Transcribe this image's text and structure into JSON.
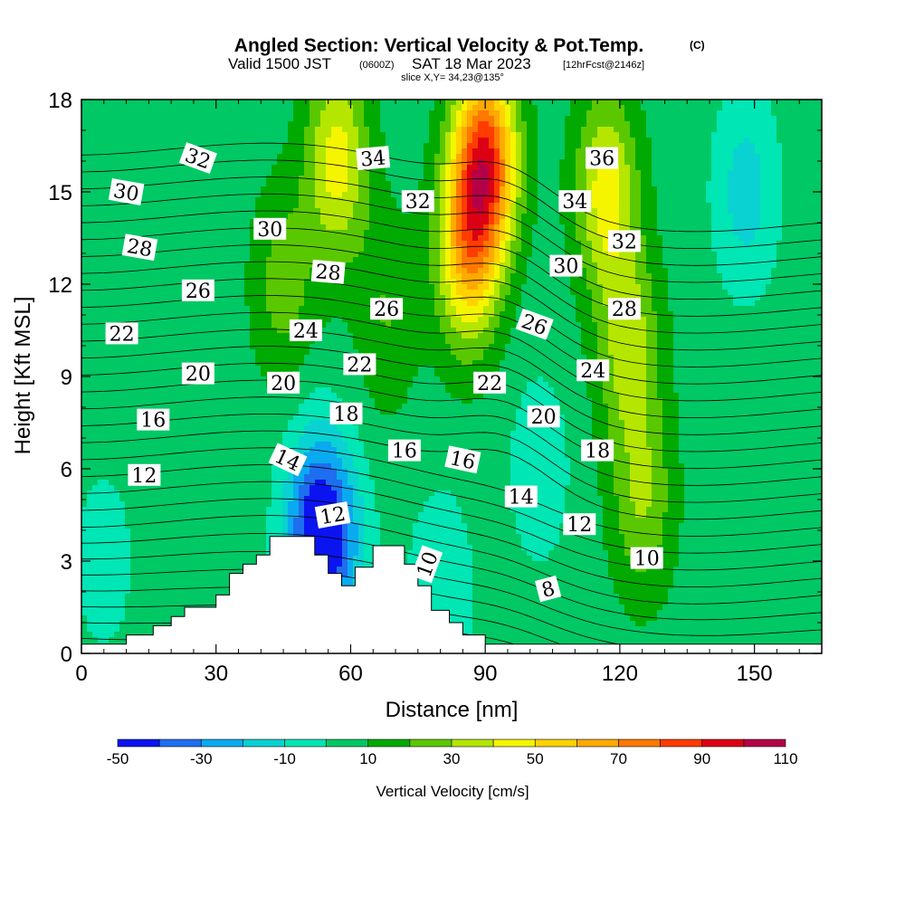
{
  "title": {
    "main": "Angled Section: Vertical Velocity & Pot.Temp.",
    "unit_tag": "(C)",
    "valid_prefix": "Valid 1500 JST",
    "valid_zulu": "(0600Z)",
    "valid_date": "SAT 18 Mar 2023",
    "forecast": "[12hrFcst@2146z]",
    "slice": "slice X,Y= 34,23@135°"
  },
  "chart_data": {
    "type": "heatmap",
    "xlabel": "Distance [nm]",
    "ylabel": "Height [Kft MSL]",
    "xlim": [
      0,
      165
    ],
    "ylim": [
      0,
      18
    ],
    "xticks": [
      "0",
      "30",
      "60",
      "90",
      "120",
      "150"
    ],
    "xtick_values": [
      0,
      30,
      60,
      90,
      120,
      150
    ],
    "yticks": [
      "0",
      "3",
      "6",
      "9",
      "12",
      "15",
      "18"
    ],
    "ytick_values": [
      0,
      3,
      6,
      9,
      12,
      15,
      18
    ],
    "colorbar": {
      "title": "Vertical Velocity [cm/s]",
      "levels": [
        -50,
        -40,
        -30,
        -20,
        -10,
        0,
        10,
        20,
        30,
        40,
        50,
        60,
        70,
        80,
        90,
        100,
        110
      ],
      "labels": [
        "-50",
        "-30",
        "-10",
        "10",
        "30",
        "50",
        "70",
        "90",
        "110"
      ],
      "label_values": [
        -50,
        -30,
        -10,
        10,
        30,
        50,
        70,
        90,
        110
      ],
      "colors": [
        "#0a14f0",
        "#1e6ef0",
        "#0aaaf0",
        "#0ad2d2",
        "#00e6b4",
        "#00c864",
        "#00aa00",
        "#5ac800",
        "#b4e600",
        "#f5f500",
        "#ffd200",
        "#ffaa00",
        "#ff7800",
        "#ff3c00",
        "#dc0014",
        "#b40046",
        "#8c0082"
      ]
    },
    "terrain_kft": [
      [
        0,
        0.3
      ],
      [
        10,
        0.3
      ],
      [
        10,
        0.6
      ],
      [
        16,
        0.6
      ],
      [
        16,
        0.9
      ],
      [
        20,
        0.9
      ],
      [
        20,
        1.2
      ],
      [
        23,
        1.2
      ],
      [
        23,
        1.5
      ],
      [
        30,
        1.5
      ],
      [
        30,
        1.9
      ],
      [
        33,
        1.9
      ],
      [
        33,
        2.6
      ],
      [
        36,
        2.6
      ],
      [
        36,
        2.9
      ],
      [
        39,
        2.9
      ],
      [
        39,
        3.2
      ],
      [
        42,
        3.2
      ],
      [
        42,
        3.8
      ],
      [
        52,
        3.8
      ],
      [
        52,
        3.2
      ],
      [
        55,
        3.2
      ],
      [
        55,
        2.6
      ],
      [
        58,
        2.6
      ],
      [
        58,
        2.2
      ],
      [
        61,
        2.2
      ],
      [
        61,
        2.8
      ],
      [
        65,
        2.8
      ],
      [
        65,
        3.5
      ],
      [
        72,
        3.5
      ],
      [
        72,
        2.9
      ],
      [
        75,
        2.9
      ],
      [
        75,
        2.2
      ],
      [
        78,
        2.2
      ],
      [
        78,
        1.4
      ],
      [
        82,
        1.4
      ],
      [
        82,
        1.0
      ],
      [
        85,
        1.0
      ],
      [
        85,
        0.6
      ],
      [
        90,
        0.6
      ],
      [
        90,
        0.3
      ],
      [
        165,
        0.3
      ]
    ],
    "wind_features": [
      {
        "x": 90,
        "z": 16,
        "w": 80
      },
      {
        "x": 86,
        "z": 13,
        "w": 50
      },
      {
        "x": 57,
        "z": 16,
        "w": 40
      },
      {
        "x": 117,
        "z": 15,
        "w": 40
      },
      {
        "x": 122,
        "z": 10,
        "w": 30
      },
      {
        "x": 125,
        "z": 5,
        "w": 25
      },
      {
        "x": 45,
        "z": 12,
        "w": 20
      },
      {
        "x": 68,
        "z": 11,
        "w": 15
      },
      {
        "x": 52,
        "z": 4,
        "w": -45
      },
      {
        "x": 57,
        "z": 3.5,
        "w": -25
      },
      {
        "x": 148,
        "z": 15,
        "w": -20
      },
      {
        "x": 102,
        "z": 6,
        "w": -12
      },
      {
        "x": 80,
        "z": 2,
        "w": -15
      },
      {
        "x": 5,
        "z": 3,
        "w": -10
      }
    ],
    "theta_contours": [
      {
        "label": "8",
        "lx": 104,
        "lz": 2.1,
        "rot": -15,
        "visible": true
      },
      {
        "label": "10",
        "lx": 77,
        "lz": 2.9,
        "rot": -70,
        "visible": true
      },
      {
        "label": "10",
        "lx": 126,
        "lz": 3.1,
        "rot": 0,
        "visible": true
      },
      {
        "label": "12",
        "lx": 14,
        "lz": 5.8,
        "rot": 0,
        "visible": true
      },
      {
        "label": "12",
        "lx": 56,
        "lz": 4.5,
        "rot": -10,
        "visible": true
      },
      {
        "label": "12",
        "lx": 111,
        "lz": 4.2,
        "rot": 0,
        "visible": true
      },
      {
        "label": "14",
        "lx": 46,
        "lz": 6.3,
        "rot": 25,
        "visible": true
      },
      {
        "label": "14",
        "lx": 98,
        "lz": 5.1,
        "rot": 0,
        "visible": true
      },
      {
        "label": "16",
        "lx": 16,
        "lz": 7.6,
        "rot": 0,
        "visible": true
      },
      {
        "label": "16",
        "lx": 72,
        "lz": 6.6,
        "rot": 0,
        "visible": true
      },
      {
        "label": "16",
        "lx": 85,
        "lz": 6.3,
        "rot": 12,
        "visible": true
      },
      {
        "label": "18",
        "lx": 59,
        "lz": 7.8,
        "rot": 0,
        "visible": true
      },
      {
        "label": "18",
        "lx": 115,
        "lz": 6.6,
        "rot": 0,
        "visible": true
      },
      {
        "label": "20",
        "lx": 26,
        "lz": 9.1,
        "rot": 0,
        "visible": true
      },
      {
        "label": "20",
        "lx": 45,
        "lz": 8.8,
        "rot": 0,
        "visible": true
      },
      {
        "label": "20",
        "lx": 103,
        "lz": 7.7,
        "rot": 0,
        "visible": true
      },
      {
        "label": "22",
        "lx": 9,
        "lz": 10.4,
        "rot": 0,
        "visible": true
      },
      {
        "label": "22",
        "lx": 62,
        "lz": 9.4,
        "rot": 0,
        "visible": true
      },
      {
        "label": "22",
        "lx": 91,
        "lz": 8.8,
        "rot": 0,
        "visible": true
      },
      {
        "label": "24",
        "lx": 50,
        "lz": 10.5,
        "rot": 0,
        "visible": true
      },
      {
        "label": "24",
        "lx": 114,
        "lz": 9.2,
        "rot": 0,
        "visible": true
      },
      {
        "label": "26",
        "lx": 26,
        "lz": 11.8,
        "rot": 0,
        "visible": true
      },
      {
        "label": "26",
        "lx": 68,
        "lz": 11.2,
        "rot": 0,
        "visible": true
      },
      {
        "label": "26",
        "lx": 101,
        "lz": 10.7,
        "rot": 20,
        "visible": true
      },
      {
        "label": "28",
        "lx": 13,
        "lz": 13.2,
        "rot": 10,
        "visible": true
      },
      {
        "label": "28",
        "lx": 55,
        "lz": 12.4,
        "rot": 5,
        "visible": true
      },
      {
        "label": "28",
        "lx": 121,
        "lz": 11.2,
        "rot": 0,
        "visible": true
      },
      {
        "label": "30",
        "lx": 10,
        "lz": 15.0,
        "rot": 10,
        "visible": true
      },
      {
        "label": "30",
        "lx": 42,
        "lz": 13.8,
        "rot": 0,
        "visible": true
      },
      {
        "label": "30",
        "lx": 108,
        "lz": 12.6,
        "rot": 0,
        "visible": true
      },
      {
        "label": "32",
        "lx": 26,
        "lz": 16.1,
        "rot": 20,
        "visible": true
      },
      {
        "label": "32",
        "lx": 75,
        "lz": 14.7,
        "rot": 0,
        "visible": true
      },
      {
        "label": "32",
        "lx": 121,
        "lz": 13.4,
        "rot": 0,
        "visible": true
      },
      {
        "label": "34",
        "lx": 65,
        "lz": 16.1,
        "rot": -5,
        "visible": true
      },
      {
        "label": "34",
        "lx": 110,
        "lz": 14.7,
        "rot": 0,
        "visible": true
      },
      {
        "label": "36",
        "lx": 116,
        "lz": 16.1,
        "rot": 0,
        "visible": true
      }
    ]
  }
}
